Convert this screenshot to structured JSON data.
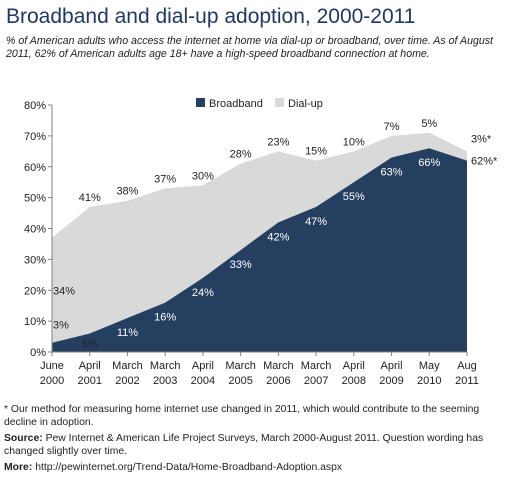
{
  "title": "Broadband and dial-up adoption, 2000-2011",
  "subtitle": "% of American adults who access the internet at home via dial-up or broadband, over time. As of August 2011, 62% of American adults age 18+ have a high-speed broadband connection at home.",
  "colors": {
    "broadband": "#243f60",
    "dialup": "#d9d9d9",
    "title": "#1f3864"
  },
  "chart_data": {
    "type": "area",
    "stacked": true,
    "x_labels": [
      [
        "June",
        "2000"
      ],
      [
        "April",
        "2001"
      ],
      [
        "March",
        "2002"
      ],
      [
        "March",
        "2003"
      ],
      [
        "April",
        "2004"
      ],
      [
        "March",
        "2005"
      ],
      [
        "March",
        "2006"
      ],
      [
        "March",
        "2007"
      ],
      [
        "April",
        "2008"
      ],
      [
        "April",
        "2009"
      ],
      [
        "May",
        "2010"
      ],
      [
        "Aug",
        "2011"
      ]
    ],
    "y_ticks": [
      "0%",
      "10%",
      "20%",
      "30%",
      "40%",
      "50%",
      "60%",
      "70%",
      "80%"
    ],
    "ylim": [
      0,
      80
    ],
    "grid": false,
    "legend_position": "top",
    "series": [
      {
        "name": "Broadband",
        "values": [
          3,
          6,
          11,
          16,
          24,
          33,
          42,
          47,
          55,
          63,
          66,
          62
        ],
        "labels": [
          "3%",
          "6%",
          "11%",
          "16%",
          "24%",
          "33%",
          "42%",
          "47%",
          "55%",
          "63%",
          "66%",
          "62%*"
        ]
      },
      {
        "name": "Dial-up",
        "values": [
          34,
          41,
          38,
          37,
          30,
          28,
          23,
          15,
          10,
          7,
          5,
          3
        ],
        "labels": [
          "34%",
          "41%",
          "38%",
          "37%",
          "30%",
          "28%",
          "23%",
          "15%",
          "10%",
          "7%",
          "5%",
          "3%*"
        ]
      }
    ]
  },
  "notes": {
    "footnote": "* Our method for measuring home internet use changed in 2011, which would contribute to the seeming decline in adoption.",
    "source_label": "Source:",
    "source_text": "Pew Internet & American Life Project Surveys, March 2000-August 2011. Question wording has changed slightly over time.",
    "more_label": "More:",
    "more_text": "http://pewinternet.org/Trend-Data/Home-Broadband-Adoption.aspx"
  }
}
